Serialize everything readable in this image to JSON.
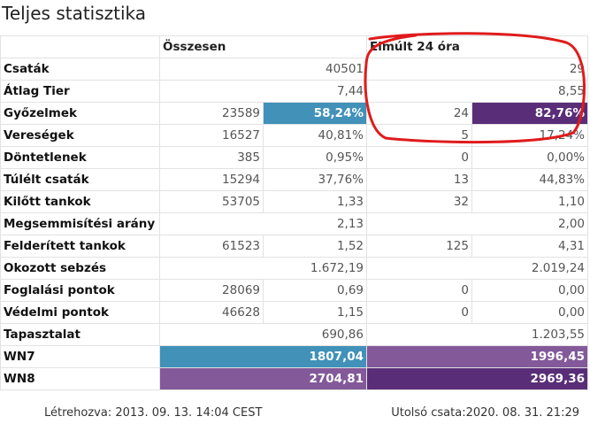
{
  "title": "Teljes statisztika",
  "headers": {
    "total": "Összesen",
    "last24": "Elmúlt 24 óra"
  },
  "rows": [
    {
      "label": "Csaták",
      "total_value": "40501",
      "last_value": "29"
    },
    {
      "label": "Átlag Tier",
      "total_value": "7,44",
      "last_value": "8,55"
    },
    {
      "label": "Győzelmek",
      "total_count": "23589",
      "total_value": "58,24%",
      "last_count": "24",
      "last_value": "82,76%"
    },
    {
      "label": "Vereségek",
      "total_count": "16527",
      "total_value": "40,81%",
      "last_count": "5",
      "last_value": "17,24%"
    },
    {
      "label": "Döntetlenek",
      "total_count": "385",
      "total_value": "0,95%",
      "last_count": "0",
      "last_value": "0,00%"
    },
    {
      "label": "Túlélt csaták",
      "total_count": "15294",
      "total_value": "37,76%",
      "last_count": "13",
      "last_value": "44,83%"
    },
    {
      "label": "Kilőtt tankok",
      "total_count": "53705",
      "total_value": "1,33",
      "last_count": "32",
      "last_value": "1,10"
    },
    {
      "label": "Megsemmisítési arány",
      "total_value": "2,13",
      "last_value": "2,00"
    },
    {
      "label": "Felderített tankok",
      "total_count": "61523",
      "total_value": "1,52",
      "last_count": "125",
      "last_value": "4,31"
    },
    {
      "label": "Okozott sebzés",
      "total_value": "1.672,19",
      "last_value": "2.019,24"
    },
    {
      "label": "Foglalási pontok",
      "total_count": "28069",
      "total_value": "0,69",
      "last_count": "0",
      "last_value": "0,00"
    },
    {
      "label": "Védelmi pontok",
      "total_count": "46628",
      "total_value": "1,15",
      "last_count": "0",
      "last_value": "0,00"
    },
    {
      "label": "Tapasztalat",
      "total_value": "690,86",
      "last_value": "1.203,55"
    },
    {
      "label": "WN7",
      "total_value": "1807,04",
      "last_value": "1996,45"
    },
    {
      "label": "WN8",
      "total_value": "2704,81",
      "last_value": "2969,36"
    }
  ],
  "colors": {
    "blue": "#4191b9",
    "purple_light": "#83599a",
    "purple_dark": "#5a2d78",
    "annotation_red": "#e01b1b"
  },
  "footer": {
    "created": "Létrehozva: 2013. 09. 13. 14:04 CEST",
    "last_battle": "Utolsó csata:2020. 08. 31. 21:29"
  }
}
